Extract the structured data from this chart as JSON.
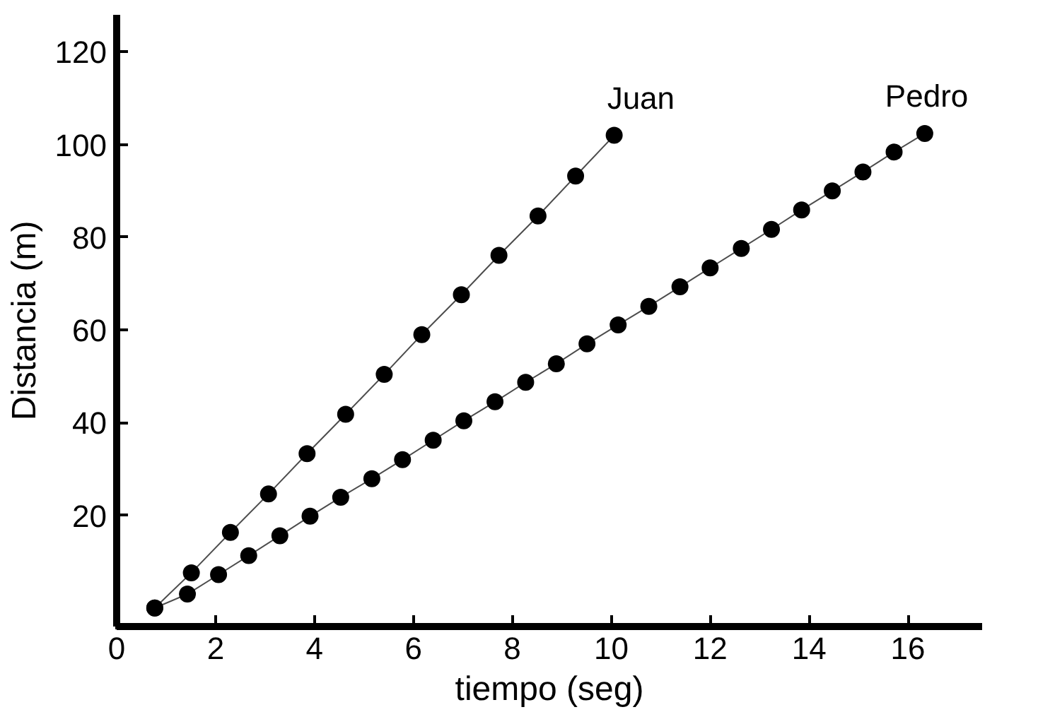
{
  "chart_data": {
    "type": "line",
    "xlabel": "tiempo (seg)",
    "ylabel": "Distancia (m)",
    "xlim": [
      0,
      17.5
    ],
    "ylim": [
      -4,
      128
    ],
    "xticks": [
      0,
      2,
      4,
      6,
      8,
      10,
      12,
      14,
      16
    ],
    "yticks": [
      20,
      40,
      60,
      80,
      100,
      120
    ],
    "grid": false,
    "marker": "circle",
    "line_style": "solid",
    "series": [
      {
        "name": "Juan",
        "color": "#000000",
        "x": [
          0.77,
          1.51,
          2.3,
          3.07,
          3.85,
          4.63,
          5.41,
          6.17,
          6.97,
          7.73,
          8.52,
          9.28,
          10.06
        ],
        "values": [
          0,
          7.6,
          16.3,
          24.6,
          33.3,
          41.8,
          50.4,
          59.0,
          67.6,
          76.1,
          84.6,
          93.2,
          102.0
        ]
      },
      {
        "name": "Pedro",
        "color": "#000000",
        "x": [
          0.77,
          1.43,
          2.06,
          2.67,
          3.3,
          3.91,
          4.53,
          5.16,
          5.78,
          6.4,
          7.02,
          7.65,
          8.27,
          8.89,
          9.51,
          10.14,
          10.76,
          11.39,
          12.0,
          12.63,
          13.24,
          13.85,
          14.47,
          15.09,
          15.72,
          16.34
        ],
        "values": [
          0,
          3.0,
          7.2,
          11.3,
          15.6,
          19.8,
          23.9,
          27.9,
          32.0,
          36.2,
          40.4,
          44.5,
          48.7,
          52.7,
          57.0,
          61.1,
          65.1,
          69.3,
          73.4,
          77.6,
          81.7,
          85.9,
          90.0,
          94.1,
          98.4,
          102.4
        ]
      }
    ]
  }
}
